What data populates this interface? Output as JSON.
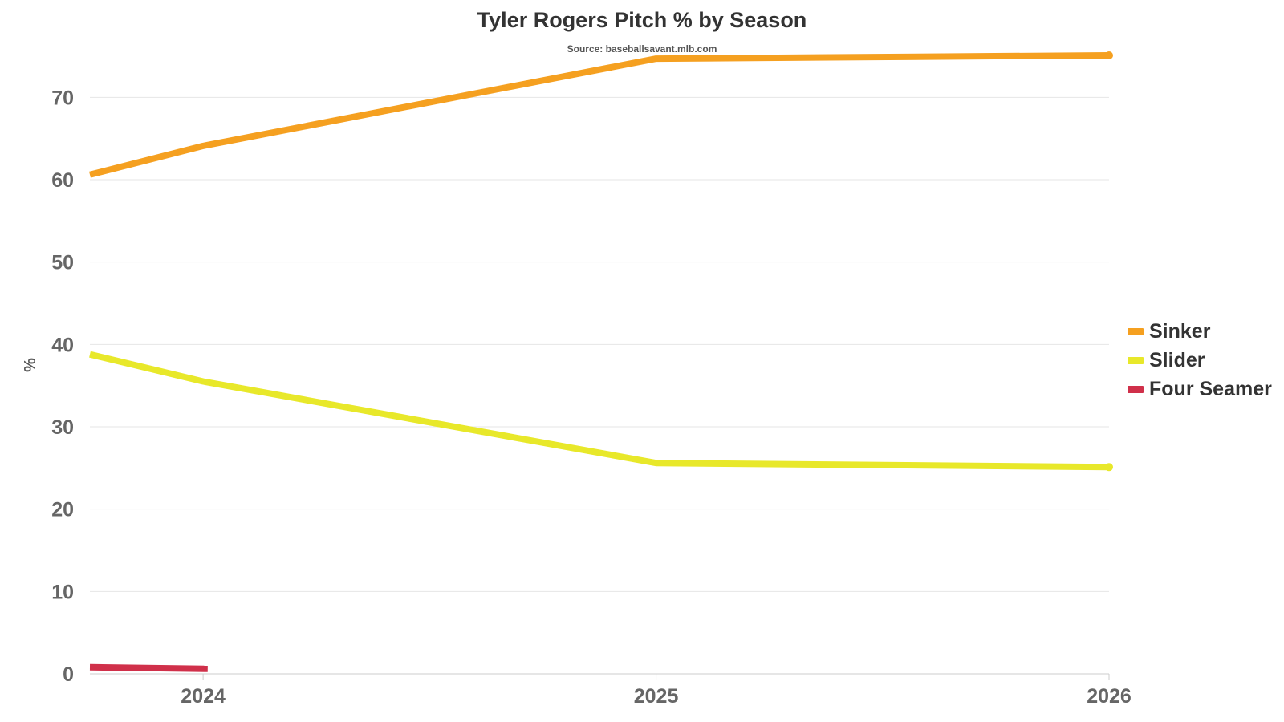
{
  "chart_data": {
    "type": "line",
    "title": "Tyler Rogers Pitch % by Season",
    "subtitle": "Source: baseballsavant.mlb.com",
    "ylabel": "%",
    "xlabel": "",
    "x_ticks": [
      "2024",
      "2025",
      "2026"
    ],
    "y_ticks": [
      "0",
      "10",
      "20",
      "30",
      "40",
      "50",
      "60",
      "70"
    ],
    "xlim": [
      2023.75,
      2026
    ],
    "ylim": [
      0,
      75
    ],
    "grid": true,
    "legend_position": "right",
    "series": [
      {
        "name": "Sinker",
        "color": "#f5a020",
        "points": [
          [
            2023.75,
            60.6
          ],
          [
            2024,
            64.1
          ],
          [
            2025,
            74.7
          ],
          [
            2026,
            75.1
          ]
        ]
      },
      {
        "name": "Slider",
        "color": "#e8e82a",
        "points": [
          [
            2023.75,
            38.8
          ],
          [
            2024,
            35.5
          ],
          [
            2025,
            25.6
          ],
          [
            2026,
            25.1
          ]
        ]
      },
      {
        "name": "Four Seamer",
        "color": "#d0304a",
        "points": [
          [
            2023.75,
            0.8
          ],
          [
            2024.01,
            0.6
          ]
        ]
      }
    ]
  }
}
